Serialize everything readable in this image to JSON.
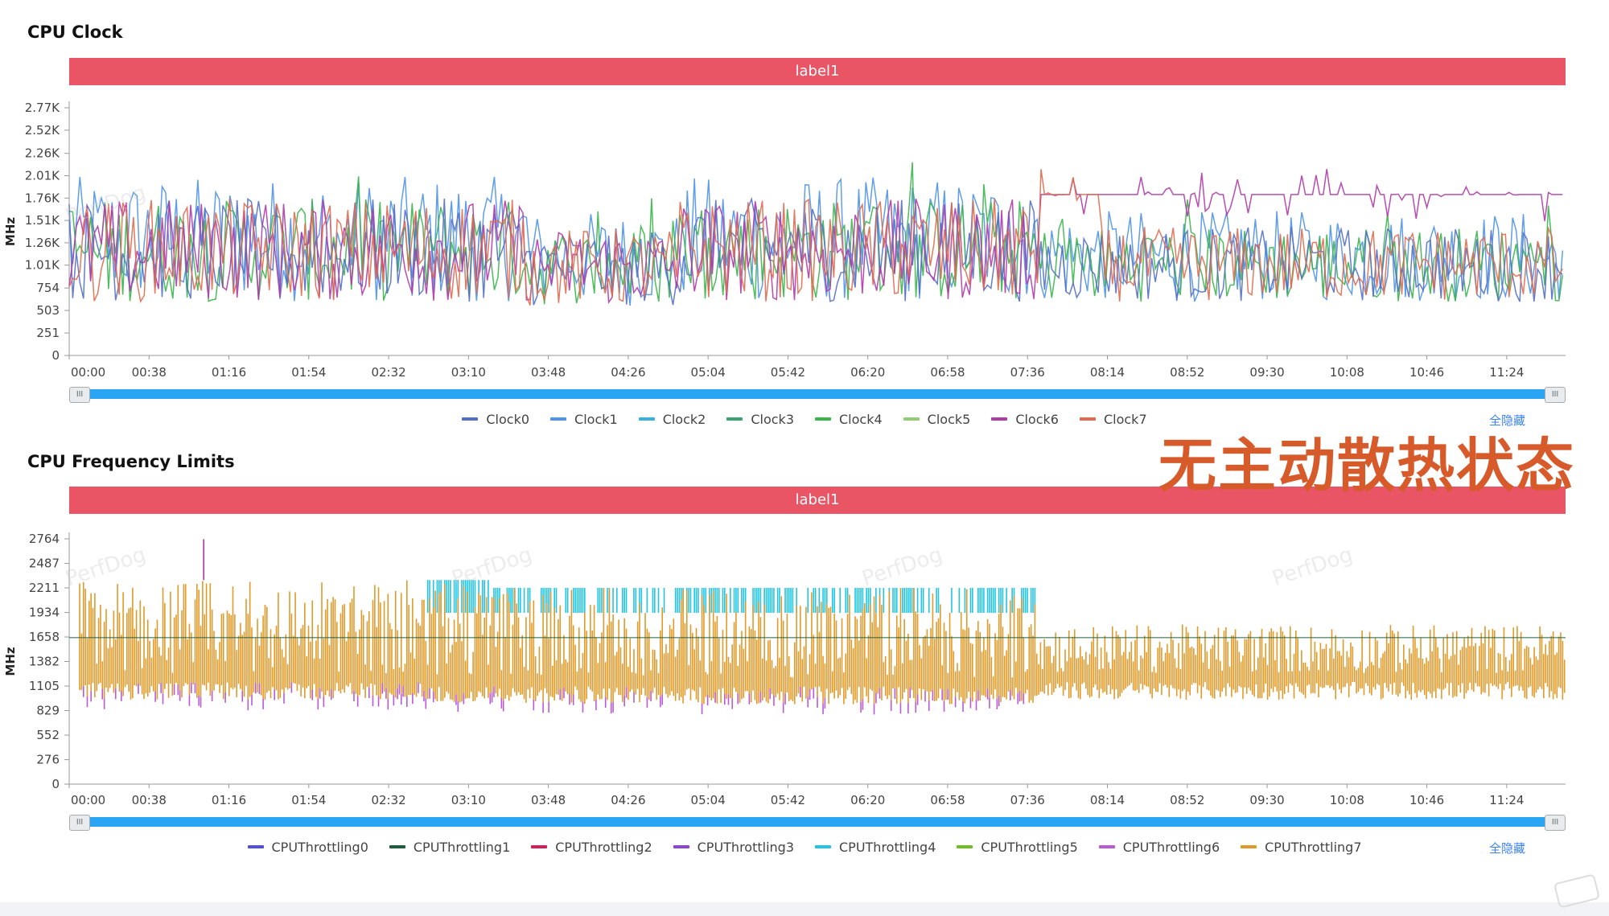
{
  "overlay_text": "无主动散热状态",
  "watermark": "PerfDog",
  "hide_all_label": "全隐藏",
  "colors": {
    "band": "#e95565",
    "slider": "#29a5f4",
    "overlay": "#d65a2a"
  },
  "chart_data": [
    {
      "type": "line",
      "title": "CPU Clock",
      "band_label": "label1",
      "ylabel": "MHz",
      "ylim": [
        0,
        2770
      ],
      "yticks": [
        "2.77K",
        "2.52K",
        "2.26K",
        "2.01K",
        "1.76K",
        "1.51K",
        "1.26K",
        "1.01K",
        "754",
        "503",
        "251",
        "0"
      ],
      "ytick_values": [
        2770,
        2520,
        2260,
        2010,
        1760,
        1510,
        1260,
        1010,
        754,
        503,
        251,
        0
      ],
      "xticks": [
        "00:00",
        "00:38",
        "01:16",
        "01:54",
        "02:32",
        "03:10",
        "03:48",
        "04:26",
        "05:04",
        "05:42",
        "06:20",
        "06:58",
        "07:36",
        "08:14",
        "08:52",
        "09:30",
        "10:08",
        "10:46",
        "11:24"
      ],
      "x_range_seconds": [
        0,
        712
      ],
      "series": [
        {
          "name": "Clock0",
          "color": "#5470c6"
        },
        {
          "name": "Clock1",
          "color": "#4e94e8"
        },
        {
          "name": "Clock2",
          "color": "#3ab0e0"
        },
        {
          "name": "Clock3",
          "color": "#3ba272"
        },
        {
          "name": "Clock4",
          "color": "#39b54a"
        },
        {
          "name": "Clock5",
          "color": "#91cc75"
        },
        {
          "name": "Clock6",
          "color": "#b03aa8"
        },
        {
          "name": "Clock7",
          "color": "#e06a4e"
        }
      ],
      "segments": [
        {
          "t": [
            0,
            218
          ],
          "min": 600,
          "max": 2250,
          "typ": 1300
        },
        {
          "t": [
            218,
            290
          ],
          "min": 550,
          "max": 1800,
          "typ": 1000
        },
        {
          "t": [
            290,
            460
          ],
          "min": 600,
          "max": 2250,
          "typ": 1350
        },
        {
          "t": [
            460,
            712
          ],
          "min": 600,
          "max": 1800,
          "typ": 1250
        }
      ],
      "steady_lines": [
        {
          "series": "Clock6",
          "t": [
            462,
            712
          ],
          "value": 1800
        },
        {
          "series": "Clock7",
          "t": [
            462,
            490
          ],
          "value": 1800
        }
      ]
    },
    {
      "type": "line",
      "title": "CPU Frequency Limits",
      "band_label": "label1",
      "ylabel": "MHz",
      "ylim": [
        0,
        2764
      ],
      "yticks": [
        "2764",
        "2487",
        "2211",
        "1934",
        "1658",
        "1382",
        "1105",
        "829",
        "552",
        "276",
        "0"
      ],
      "ytick_values": [
        2764,
        2487,
        2211,
        1934,
        1658,
        1382,
        1105,
        829,
        552,
        276,
        0
      ],
      "xticks": [
        "00:00",
        "00:38",
        "01:16",
        "01:54",
        "02:32",
        "03:10",
        "03:48",
        "04:26",
        "05:04",
        "05:42",
        "06:20",
        "06:58",
        "07:36",
        "08:14",
        "08:52",
        "09:30",
        "10:08",
        "10:46",
        "11:24"
      ],
      "x_range_seconds": [
        0,
        712
      ],
      "series": [
        {
          "name": "CPUThrottling0",
          "color": "#5050d8"
        },
        {
          "name": "CPUThrottling1",
          "color": "#1f5e3a"
        },
        {
          "name": "CPUThrottling2",
          "color": "#d21f5a"
        },
        {
          "name": "CPUThrottling3",
          "color": "#8a44d6"
        },
        {
          "name": "CPUThrottling4",
          "color": "#22c4e6"
        },
        {
          "name": "CPUThrottling5",
          "color": "#6fbe26"
        },
        {
          "name": "CPUThrottling6",
          "color": "#b85ad8"
        },
        {
          "name": "CPUThrottling7",
          "color": "#e09a2a"
        }
      ],
      "segments": [
        {
          "t": [
            0,
            170
          ],
          "cap": 2300,
          "floor": 950,
          "band_series": "CPUThrottling7"
        },
        {
          "t": [
            170,
            200
          ],
          "cap": 2300,
          "floor": 900,
          "band_series": "CPUThrottling4"
        },
        {
          "t": [
            200,
            460
          ],
          "cap": 2211,
          "floor": 900,
          "band_series": "CPUThrottling4"
        },
        {
          "t": [
            460,
            712
          ],
          "cap": 1800,
          "floor": 950,
          "band_series": "CPUThrottling7"
        }
      ],
      "spike": {
        "t": 64,
        "value": 2760
      }
    }
  ]
}
